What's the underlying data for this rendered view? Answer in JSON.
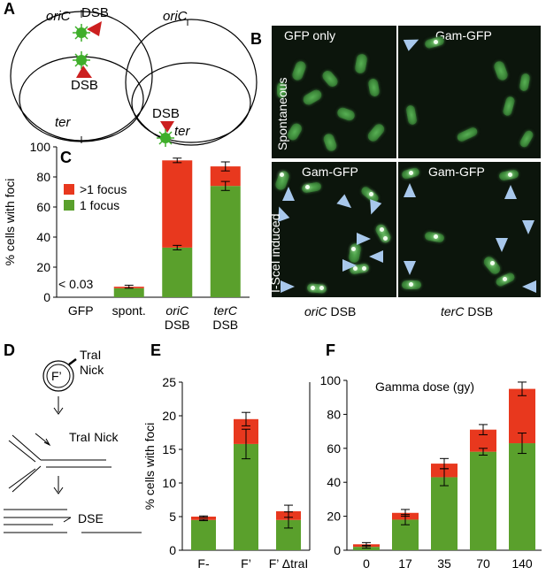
{
  "panels": {
    "A": {
      "label": "A",
      "left": {
        "oriC": "oriC",
        "ter": "ter",
        "dsb_top": "DSB",
        "dsb_mid": "DSB"
      },
      "right": {
        "oriC": "oriC",
        "dsb": "DSB",
        "ter": "ter"
      }
    },
    "B": {
      "label": "B",
      "tl": "GFP only",
      "tr": "Gam-GFP",
      "bl": "Gam-GFP",
      "br": "Gam-GFP",
      "row_top": "Spontaneous",
      "row_bottom_pre": "I-",
      "row_bottom_italic": "Sce",
      "row_bottom_mid": "I",
      " row_bottom_post": " induced",
      "row_bottom": "I-SceI induced",
      "cap_left_italic": "oriC",
      "cap_left_rest": " DSB",
      "cap_right_italic": "terC",
      "cap_right_rest": " DSB"
    },
    "C": {
      "label": "C"
    },
    "D": {
      "label": "D",
      "tral_nick_top": "TraI",
      "nick_top": "Nick",
      "plasmid": "F’",
      "tral_nick_mid": "TraI Nick",
      "dse": "DSE"
    },
    "E": {
      "label": "E"
    },
    "F": {
      "label": "F"
    }
  },
  "colors": {
    "one_focus": "#5aa02c",
    "multi_focus": "#e8381e",
    "arrow": "#a8c8ec",
    "dsb_marker": "#cc1f1f",
    "star": "#3fae2a"
  },
  "chart_data": [
    {
      "id": "C",
      "type": "bar",
      "stacked": true,
      "ylabel": "% cells with foci",
      "ylim": [
        0,
        100
      ],
      "yticks": [
        0,
        20,
        40,
        60,
        80,
        100
      ],
      "categories": [
        "GFP",
        "spont.",
        "oriC DSB",
        "terC DSB"
      ],
      "category_lines": [
        [
          "GFP"
        ],
        [
          "spont."
        ],
        [
          "oriC",
          "DSB"
        ],
        [
          "terC",
          "DSB"
        ]
      ],
      "series": [
        {
          "name": "1 focus",
          "values": [
            0,
            6,
            33,
            74
          ]
        },
        {
          "name": ">1 focus",
          "values": [
            0,
            1,
            58,
            13
          ]
        }
      ],
      "errors_total": [
        0,
        1,
        1.5,
        3
      ],
      "errors_lower": [
        0,
        0,
        1.5,
        3
      ],
      "annotation": "< 0.03",
      "legend": [
        ">1 focus",
        "1 focus"
      ]
    },
    {
      "id": "E",
      "type": "bar",
      "stacked": true,
      "ylabel": "% cells with foci",
      "ylim": [
        0,
        25
      ],
      "yticks": [
        0,
        5,
        10,
        15,
        20,
        25
      ],
      "categories": [
        "F-",
        "F’",
        "F’ ΔtraI"
      ],
      "series": [
        {
          "values": [
            4.5,
            15.8,
            4.5
          ]
        },
        {
          "values": [
            0.5,
            3.7,
            1.3
          ]
        }
      ],
      "errors_total": [
        0.1,
        1,
        0.9
      ],
      "errors_lower": [
        0.1,
        2.2,
        1.2
      ]
    },
    {
      "id": "F",
      "type": "bar",
      "stacked": true,
      "title": "Gamma dose (gy)",
      "ylim": [
        0,
        100
      ],
      "yticks": [
        0,
        20,
        40,
        60,
        80,
        100
      ],
      "categories": [
        "0",
        "17",
        "35",
        "70",
        "140"
      ],
      "series": [
        {
          "values": [
            2,
            18,
            43,
            58,
            63
          ]
        },
        {
          "values": [
            1.5,
            4,
            8,
            13,
            32
          ]
        }
      ],
      "errors_total": [
        1,
        2,
        3,
        3,
        4
      ],
      "errors_lower": [
        0.8,
        3,
        5,
        2,
        6
      ]
    }
  ]
}
